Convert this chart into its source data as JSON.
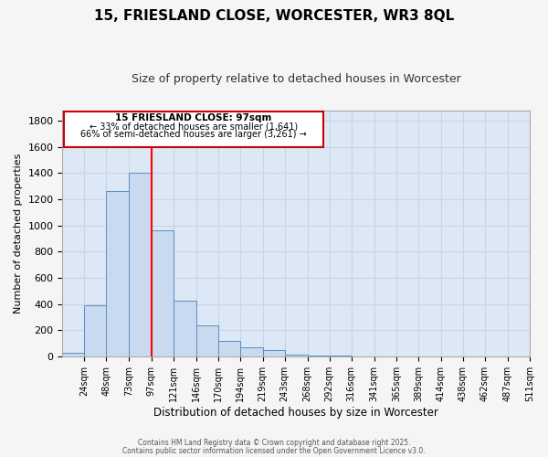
{
  "title": "15, FRIESLAND CLOSE, WORCESTER, WR3 8QL",
  "subtitle": "Size of property relative to detached houses in Worcester",
  "xlabel": "Distribution of detached houses by size in Worcester",
  "ylabel": "Number of detached properties",
  "bar_color": "#c9d9f0",
  "bar_edge_color": "#5b8ec4",
  "bin_starts": [
    0,
    24,
    48,
    73,
    97,
    121,
    146,
    170,
    194,
    219,
    243,
    268,
    292,
    316,
    341,
    365,
    389,
    414,
    438,
    462,
    487
  ],
  "bin_ends": [
    24,
    48,
    73,
    97,
    121,
    146,
    170,
    194,
    219,
    243,
    268,
    292,
    316,
    341,
    365,
    389,
    414,
    438,
    462,
    487,
    511
  ],
  "bar_heights": [
    25,
    390,
    1265,
    1405,
    960,
    425,
    235,
    115,
    70,
    48,
    15,
    5,
    5,
    0,
    0,
    0,
    0,
    0,
    0,
    0,
    0
  ],
  "tick_positions": [
    24,
    48,
    73,
    97,
    121,
    146,
    170,
    194,
    219,
    243,
    268,
    292,
    316,
    341,
    365,
    389,
    414,
    438,
    462,
    487,
    511
  ],
  "tick_labels": [
    "24sqm",
    "48sqm",
    "73sqm",
    "97sqm",
    "121sqm",
    "146sqm",
    "170sqm",
    "194sqm",
    "219sqm",
    "243sqm",
    "268sqm",
    "292sqm",
    "316sqm",
    "341sqm",
    "365sqm",
    "389sqm",
    "414sqm",
    "438sqm",
    "462sqm",
    "487sqm",
    "511sqm"
  ],
  "red_line_x": 97,
  "xlim": [
    0,
    511
  ],
  "ylim": [
    0,
    1880
  ],
  "yticks": [
    0,
    200,
    400,
    600,
    800,
    1000,
    1200,
    1400,
    1600,
    1800
  ],
  "annotation_title": "15 FRIESLAND CLOSE: 97sqm",
  "annotation_line1": "← 33% of detached houses are smaller (1,641)",
  "annotation_line2": "66% of semi-detached houses are larger (3,261) →",
  "annotation_box_color": "#ffffff",
  "annotation_box_edge": "#cc0000",
  "grid_color": "#c8d4e8",
  "background_color": "#dce8f5",
  "fig_background": "#f5f5f5",
  "footer1": "Contains HM Land Registry data © Crown copyright and database right 2025.",
  "footer2": "Contains public sector information licensed under the Open Government Licence v3.0."
}
